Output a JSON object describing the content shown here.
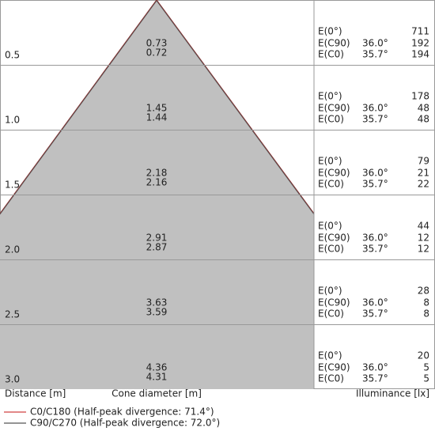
{
  "header": {
    "distance": "Distance [m]",
    "diameter": "Cone diameter [m]",
    "illuminance": "Illuminance [lx]"
  },
  "labels": [
    "E(0°)",
    "E(C90)",
    "E(C0)"
  ],
  "rows": [
    {
      "distance": "0.5",
      "diameters": [
        "0.73",
        "0.72"
      ],
      "e0": "711",
      "c90_angle": "36.0°",
      "e_c90": "192",
      "c0_angle": "35.7°",
      "e_c0": "194"
    },
    {
      "distance": "1.0",
      "diameters": [
        "1.45",
        "1.44"
      ],
      "e0": "178",
      "c90_angle": "36.0°",
      "e_c90": "48",
      "c0_angle": "35.7°",
      "e_c0": "48"
    },
    {
      "distance": "1.5",
      "diameters": [
        "2.18",
        "2.16"
      ],
      "e0": "79",
      "c90_angle": "36.0°",
      "e_c90": "21",
      "c0_angle": "35.7°",
      "e_c0": "22"
    },
    {
      "distance": "2.0",
      "diameters": [
        "2.91",
        "2.87"
      ],
      "e0": "44",
      "c90_angle": "36.0°",
      "e_c90": "12",
      "c0_angle": "35.7°",
      "e_c0": "12"
    },
    {
      "distance": "2.5",
      "diameters": [
        "3.63",
        "3.59"
      ],
      "e0": "28",
      "c90_angle": "36.0°",
      "e_c90": "8",
      "c0_angle": "35.7°",
      "e_c0": "8"
    },
    {
      "distance": "3.0",
      "diameters": [
        "4.36",
        "4.31"
      ],
      "e0": "20",
      "c90_angle": "36.0°",
      "e_c90": "5",
      "c0_angle": "35.7°",
      "e_c0": "5"
    }
  ],
  "legend": [
    "C0/C180 (Half-peak divergence: 71.4°)",
    "C90/C270 (Half-peak divergence: 72.0°)"
  ]
}
